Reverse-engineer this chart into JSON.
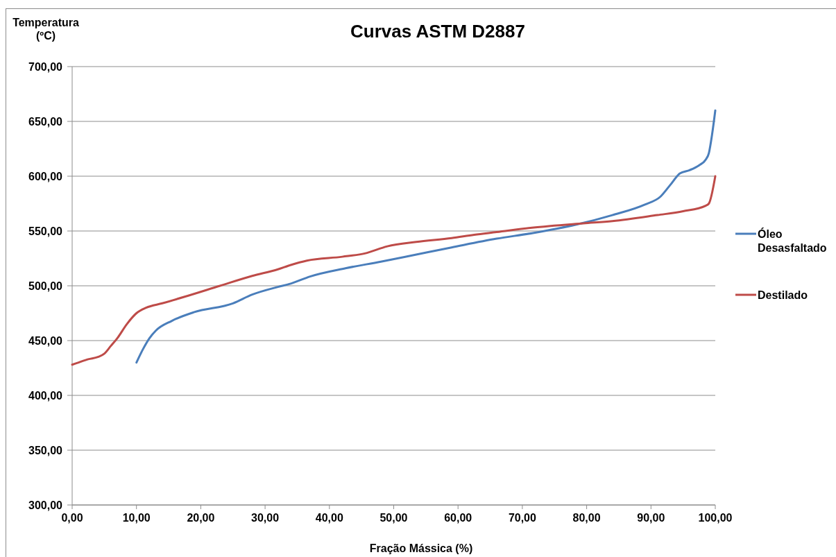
{
  "chart_data": {
    "type": "line",
    "title": "Curvas ASTM D2887",
    "xlabel": "Fração Mássica (%)",
    "ylabel": "Temperatura (ºC)",
    "xlim": [
      0,
      100
    ],
    "xticks": [
      {
        "value": 0,
        "label": "0,00"
      },
      {
        "value": 10,
        "label": "10,00"
      },
      {
        "value": 20,
        "label": "20,00"
      },
      {
        "value": 30,
        "label": "30,00"
      },
      {
        "value": 40,
        "label": "40,00"
      },
      {
        "value": 50,
        "label": "50,00"
      },
      {
        "value": 60,
        "label": "60,00"
      },
      {
        "value": 70,
        "label": "70,00"
      },
      {
        "value": 80,
        "label": "80,00"
      },
      {
        "value": 90,
        "label": "90,00"
      },
      {
        "value": 100,
        "label": "100,00"
      }
    ],
    "ylim": [
      300,
      700
    ],
    "yticks": [
      {
        "value": 300,
        "label": "300,00"
      },
      {
        "value": 350,
        "label": "350,00"
      },
      {
        "value": 400,
        "label": "400,00"
      },
      {
        "value": 450,
        "label": "450,00"
      },
      {
        "value": 500,
        "label": "500,00"
      },
      {
        "value": 550,
        "label": "550,00"
      },
      {
        "value": 600,
        "label": "600,00"
      },
      {
        "value": 650,
        "label": "650,00"
      },
      {
        "value": 700,
        "label": "700,00"
      }
    ],
    "grid": "y",
    "legend": "right",
    "series": [
      {
        "name": "Óleo Desasfaltado",
        "color": "#4a7ebb",
        "x": [
          10,
          11,
          12,
          13,
          15.5,
          19,
          25,
          28,
          32,
          34,
          37,
          42.5,
          48,
          53.5,
          59,
          66,
          71.5,
          78.5,
          84,
          89,
          91.5,
          93,
          94.5,
          96,
          97.5,
          98.5,
          99,
          99.5,
          100
        ],
        "values": [
          430,
          442,
          452,
          459,
          468,
          476,
          484,
          492,
          499,
          502,
          508.5,
          516,
          522,
          528.5,
          535,
          543,
          548,
          556,
          564.5,
          574,
          581.5,
          592,
          602.5,
          605.5,
          610,
          615,
          621,
          638,
          660
        ]
      },
      {
        "name": "Destilado",
        "color": "#be4b48",
        "x": [
          0,
          1,
          2.5,
          4,
          5,
          6,
          7,
          8.5,
          10,
          11.5,
          14,
          17.5,
          23,
          28,
          32,
          34,
          36.5,
          42,
          45.5,
          49,
          53.5,
          59,
          62.5,
          66,
          71.5,
          79.5,
          84,
          91,
          95,
          98.5,
          99,
          100
        ],
        "values": [
          428,
          430,
          433,
          435,
          438,
          445,
          452,
          465,
          475,
          480,
          484,
          490,
          500,
          509,
          515,
          519,
          523,
          526.5,
          529.5,
          536,
          540,
          543.5,
          546.5,
          549,
          553,
          557,
          559,
          564.5,
          568,
          573,
          575,
          600
        ]
      }
    ]
  }
}
